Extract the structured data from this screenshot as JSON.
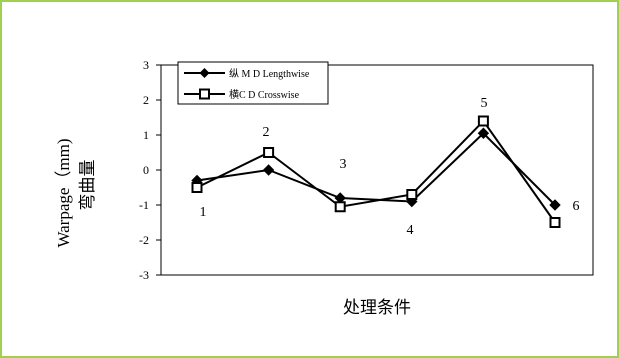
{
  "chart_data": {
    "type": "line",
    "title": "",
    "xlabel": "处理条件",
    "ylabel_en": "Warpage（mm)",
    "ylabel_zh": "弯曲量",
    "ylim": [
      -3,
      3
    ],
    "yticks": [
      "3",
      "2",
      "1",
      "0",
      "-1",
      "-2",
      "-3"
    ],
    "grid": false,
    "legend_position": "top-left",
    "x": [
      1,
      2,
      3,
      4,
      5,
      6
    ],
    "series": [
      {
        "name": "纵 M D Lengthwise",
        "marker": "diamond",
        "values": [
          -0.3,
          0.0,
          -0.8,
          -0.9,
          1.05,
          -1.0
        ]
      },
      {
        "name": "横C D Crosswise",
        "marker": "square",
        "values": [
          -0.5,
          0.5,
          -1.05,
          -0.7,
          1.4,
          -1.5
        ]
      }
    ],
    "annotations": [
      "1",
      "2",
      "3",
      "4",
      "5",
      "6"
    ]
  },
  "colors": {
    "border": "#a0d050",
    "line": "#000000",
    "background": "#ffffff"
  }
}
